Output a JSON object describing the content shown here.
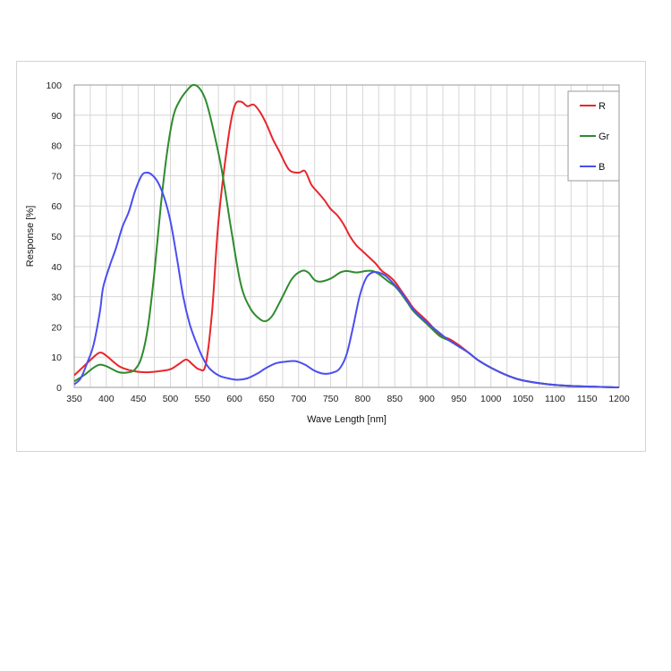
{
  "chart_data": {
    "type": "line",
    "title": "",
    "xlabel": "Wave Length [nm]",
    "ylabel": "Response  [%]",
    "xlim": [
      350,
      1200
    ],
    "ylim": [
      0,
      100
    ],
    "x_ticks": [
      350,
      400,
      450,
      500,
      550,
      600,
      650,
      700,
      750,
      800,
      850,
      900,
      950,
      1000,
      1050,
      1100,
      1150,
      1200
    ],
    "y_ticks": [
      0,
      10,
      20,
      30,
      40,
      50,
      60,
      70,
      80,
      90,
      100
    ],
    "x_grid_step": 25,
    "grid": true,
    "legend_position": "top-right",
    "series": [
      {
        "name": "R",
        "color": "#e8262b",
        "points": [
          [
            350,
            4
          ],
          [
            365,
            7
          ],
          [
            380,
            10
          ],
          [
            390,
            11.5
          ],
          [
            400,
            10.5
          ],
          [
            420,
            7
          ],
          [
            440,
            5.5
          ],
          [
            460,
            5
          ],
          [
            480,
            5.3
          ],
          [
            500,
            6
          ],
          [
            515,
            8
          ],
          [
            525,
            9.2
          ],
          [
            535,
            7.5
          ],
          [
            545,
            6
          ],
          [
            555,
            7.5
          ],
          [
            565,
            25
          ],
          [
            575,
            55
          ],
          [
            590,
            82
          ],
          [
            600,
            93
          ],
          [
            610,
            94.5
          ],
          [
            620,
            93
          ],
          [
            630,
            93.5
          ],
          [
            640,
            91
          ],
          [
            650,
            87
          ],
          [
            660,
            82
          ],
          [
            670,
            78
          ],
          [
            685,
            72
          ],
          [
            700,
            71
          ],
          [
            710,
            71.5
          ],
          [
            720,
            67
          ],
          [
            730,
            64.5
          ],
          [
            740,
            62
          ],
          [
            750,
            59
          ],
          [
            760,
            57
          ],
          [
            770,
            54
          ],
          [
            780,
            50
          ],
          [
            790,
            47
          ],
          [
            800,
            45
          ],
          [
            810,
            43
          ],
          [
            820,
            41
          ],
          [
            830,
            38.5
          ],
          [
            840,
            37
          ],
          [
            850,
            35
          ],
          [
            860,
            32
          ],
          [
            870,
            29
          ],
          [
            880,
            26
          ],
          [
            900,
            22
          ],
          [
            920,
            17.5
          ],
          [
            935,
            16
          ],
          [
            950,
            14
          ],
          [
            965,
            11.5
          ],
          [
            980,
            9
          ],
          [
            1000,
            6.5
          ],
          [
            1025,
            4
          ],
          [
            1050,
            2.3
          ],
          [
            1100,
            0.8
          ],
          [
            1150,
            0.3
          ],
          [
            1200,
            0
          ]
        ]
      },
      {
        "name": "Gr",
        "color": "#2e8b2e",
        "points": [
          [
            350,
            2
          ],
          [
            365,
            4
          ],
          [
            380,
            6.5
          ],
          [
            390,
            7.5
          ],
          [
            400,
            7
          ],
          [
            420,
            5
          ],
          [
            435,
            5
          ],
          [
            445,
            6
          ],
          [
            455,
            10
          ],
          [
            465,
            20
          ],
          [
            475,
            38
          ],
          [
            485,
            60
          ],
          [
            495,
            78
          ],
          [
            505,
            90
          ],
          [
            515,
            95
          ],
          [
            525,
            98
          ],
          [
            535,
            100
          ],
          [
            545,
            99
          ],
          [
            555,
            95
          ],
          [
            565,
            87
          ],
          [
            580,
            72
          ],
          [
            595,
            52
          ],
          [
            610,
            34
          ],
          [
            625,
            26
          ],
          [
            640,
            22.5
          ],
          [
            650,
            22
          ],
          [
            660,
            24
          ],
          [
            675,
            30
          ],
          [
            690,
            36
          ],
          [
            705,
            38.5
          ],
          [
            715,
            38
          ],
          [
            725,
            35.5
          ],
          [
            735,
            35
          ],
          [
            750,
            36
          ],
          [
            765,
            38
          ],
          [
            775,
            38.5
          ],
          [
            790,
            38
          ],
          [
            805,
            38.5
          ],
          [
            815,
            38.5
          ],
          [
            825,
            37.5
          ],
          [
            840,
            35
          ],
          [
            850,
            33.5
          ],
          [
            860,
            31
          ],
          [
            870,
            28
          ],
          [
            880,
            25
          ],
          [
            900,
            21
          ],
          [
            920,
            17
          ],
          [
            935,
            15.5
          ],
          [
            950,
            13.5
          ],
          [
            965,
            11.5
          ],
          [
            980,
            9
          ],
          [
            1000,
            6.5
          ],
          [
            1025,
            4
          ],
          [
            1050,
            2.3
          ],
          [
            1100,
            0.8
          ],
          [
            1150,
            0.3
          ],
          [
            1200,
            0
          ]
        ]
      },
      {
        "name": "B",
        "color": "#4a4ef0",
        "points": [
          [
            350,
            1
          ],
          [
            360,
            3
          ],
          [
            370,
            8
          ],
          [
            380,
            14
          ],
          [
            390,
            25
          ],
          [
            395,
            33
          ],
          [
            405,
            40
          ],
          [
            415,
            46
          ],
          [
            425,
            53
          ],
          [
            435,
            58
          ],
          [
            445,
            65
          ],
          [
            455,
            70
          ],
          [
            462,
            71
          ],
          [
            470,
            70.5
          ],
          [
            480,
            68
          ],
          [
            490,
            63
          ],
          [
            500,
            55
          ],
          [
            510,
            43
          ],
          [
            520,
            30
          ],
          [
            530,
            21
          ],
          [
            540,
            15
          ],
          [
            550,
            10
          ],
          [
            560,
            6.5
          ],
          [
            575,
            4
          ],
          [
            590,
            3
          ],
          [
            605,
            2.5
          ],
          [
            620,
            3
          ],
          [
            635,
            4.5
          ],
          [
            650,
            6.5
          ],
          [
            665,
            8
          ],
          [
            680,
            8.5
          ],
          [
            695,
            8.7
          ],
          [
            710,
            7.5
          ],
          [
            725,
            5.5
          ],
          [
            740,
            4.5
          ],
          [
            755,
            5
          ],
          [
            765,
            6.5
          ],
          [
            775,
            11
          ],
          [
            785,
            20
          ],
          [
            795,
            30
          ],
          [
            805,
            36
          ],
          [
            815,
            38
          ],
          [
            825,
            38
          ],
          [
            835,
            37
          ],
          [
            845,
            35
          ],
          [
            860,
            31.5
          ],
          [
            870,
            28.5
          ],
          [
            880,
            25.5
          ],
          [
            900,
            21.5
          ],
          [
            920,
            18
          ],
          [
            935,
            15.5
          ],
          [
            950,
            13.5
          ],
          [
            965,
            11.5
          ],
          [
            980,
            9
          ],
          [
            1000,
            6.5
          ],
          [
            1025,
            4
          ],
          [
            1050,
            2.3
          ],
          [
            1100,
            0.8
          ],
          [
            1150,
            0.3
          ],
          [
            1200,
            0
          ]
        ]
      }
    ]
  }
}
